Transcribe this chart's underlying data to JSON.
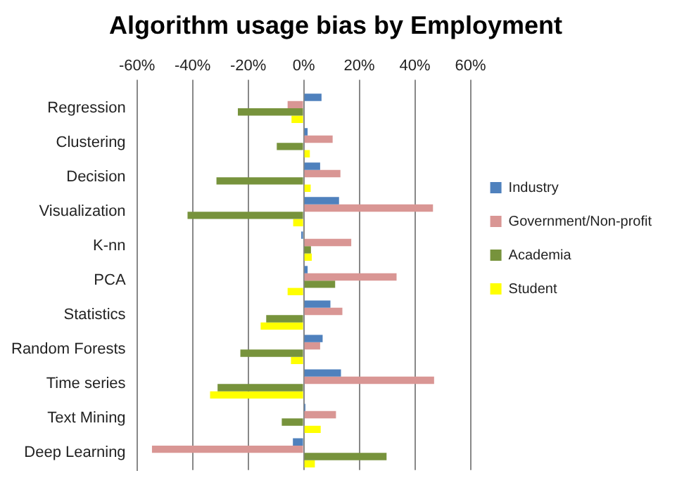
{
  "chart_data": {
    "type": "bar",
    "orientation": "horizontal",
    "title": "Algorithm usage bias by Employment",
    "categories": [
      "Regression",
      "Clustering",
      "Decision",
      "Visualization",
      "K-nn",
      "PCA",
      "Statistics",
      "Random Forests",
      "Time series",
      "Text Mining",
      "Deep Learning"
    ],
    "series": [
      {
        "name": "Industry",
        "color": "#4f81bd",
        "values": [
          6.4,
          1.4,
          5.9,
          12.7,
          -0.9,
          1.4,
          9.6,
          6.8,
          13.4,
          0.6,
          -3.9
        ]
      },
      {
        "name": "Government/Non-profit",
        "color": "#d99694",
        "values": [
          -5.8,
          10.4,
          13.2,
          46.5,
          17.1,
          33.4,
          13.9,
          5.9,
          46.9,
          11.6,
          -54.6
        ]
      },
      {
        "name": "Academia",
        "color": "#77933c",
        "values": [
          -23.7,
          -9.7,
          -31.4,
          -41.8,
          2.6,
          11.3,
          -13.5,
          -22.8,
          -31,
          -7.9,
          29.8
        ]
      },
      {
        "name": "Student",
        "color": "#ffff00",
        "values": [
          -4.4,
          2.2,
          2.5,
          -3.8,
          2.9,
          -5.8,
          -15.5,
          -4.6,
          -33.7,
          6.1,
          4
        ]
      }
    ],
    "xlim": [
      -60,
      60
    ],
    "xticks": [
      {
        "value": -60,
        "label": "-60%"
      },
      {
        "value": -40,
        "label": "-40%"
      },
      {
        "value": -20,
        "label": "-20%"
      },
      {
        "value": 0,
        "label": "0%"
      },
      {
        "value": 20,
        "label": "20%"
      },
      {
        "value": 40,
        "label": "40%"
      },
      {
        "value": 60,
        "label": "60%"
      }
    ],
    "grid": "x",
    "legend": "right"
  }
}
